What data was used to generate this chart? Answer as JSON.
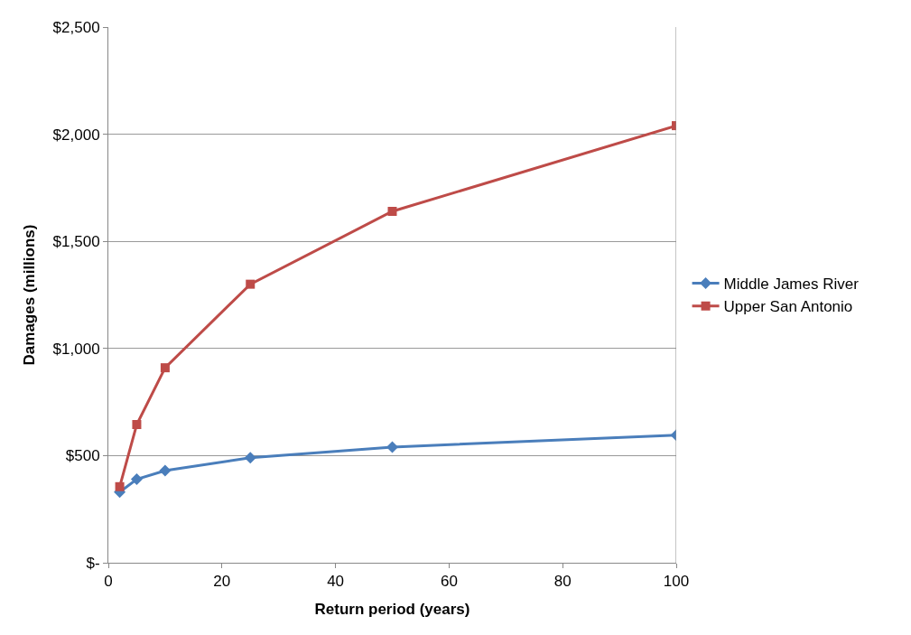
{
  "chart_data": {
    "type": "line",
    "xlabel": "Return period (years)",
    "ylabel": "Damages (millions)",
    "x": [
      2,
      5,
      10,
      25,
      50,
      100
    ],
    "series": [
      {
        "name": "Middle James River",
        "color": "#4a7ebb",
        "marker": "diamond",
        "values": [
          330,
          390,
          430,
          490,
          540,
          595
        ]
      },
      {
        "name": "Upper San Antonio",
        "color": "#be4b48",
        "marker": "square",
        "values": [
          355,
          645,
          910,
          1300,
          1640,
          2040
        ]
      }
    ],
    "xlim": [
      0,
      100
    ],
    "xticks": [
      0,
      20,
      40,
      60,
      80,
      100
    ],
    "ylim": [
      0,
      2500
    ],
    "yticks": [
      {
        "value": 0,
        "label": "$-"
      },
      {
        "value": 500,
        "label": "$500"
      },
      {
        "value": 1000,
        "label": "$1,000"
      },
      {
        "value": 1500,
        "label": "$1,500"
      },
      {
        "value": 2000,
        "label": "$2,000"
      },
      {
        "value": 2500,
        "label": "$2,500"
      }
    ],
    "grid": "y",
    "legend": "right"
  }
}
